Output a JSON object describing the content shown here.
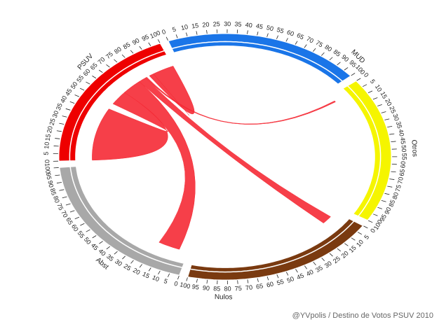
{
  "chart_data": {
    "type": "chord",
    "caption": "@YVpolis / Destino de Votos PSUV 2010",
    "scale": [
      0,
      100
    ],
    "ticks": [
      0,
      5,
      10,
      15,
      20,
      25,
      30,
      35,
      40,
      45,
      50,
      55,
      60,
      65,
      70,
      75,
      80,
      85,
      90,
      95,
      100
    ],
    "segments": [
      {
        "name": "PSUV",
        "color": "#ee0000"
      },
      {
        "name": "MUD",
        "color": "#1a75e8"
      },
      {
        "name": "Otros",
        "color": "#f5f500"
      },
      {
        "name": "Nulos",
        "color": "#7a3a10"
      },
      {
        "name": "Abst",
        "color": "#a8a8a8"
      }
    ],
    "chord_color": "#f52a35",
    "chords": [
      {
        "from": 0,
        "from_range": [
          0,
          45
        ],
        "to": 0,
        "to_range": [
          50,
          62
        ]
      },
      {
        "from": 0,
        "from_range": [
          62,
          75
        ],
        "to": 4,
        "to_range": [
          6,
          20
        ]
      },
      {
        "from": 0,
        "from_range": [
          75,
          80
        ],
        "to": 3,
        "to_range": [
          5,
          12
        ]
      },
      {
        "from": 0,
        "from_range": [
          80,
          81
        ],
        "to": 2,
        "to_range": [
          5,
          6
        ]
      },
      {
        "from": 0,
        "from_range": [
          86,
          100
        ],
        "to": 0,
        "to_range": [
          83,
          86
        ]
      }
    ]
  }
}
